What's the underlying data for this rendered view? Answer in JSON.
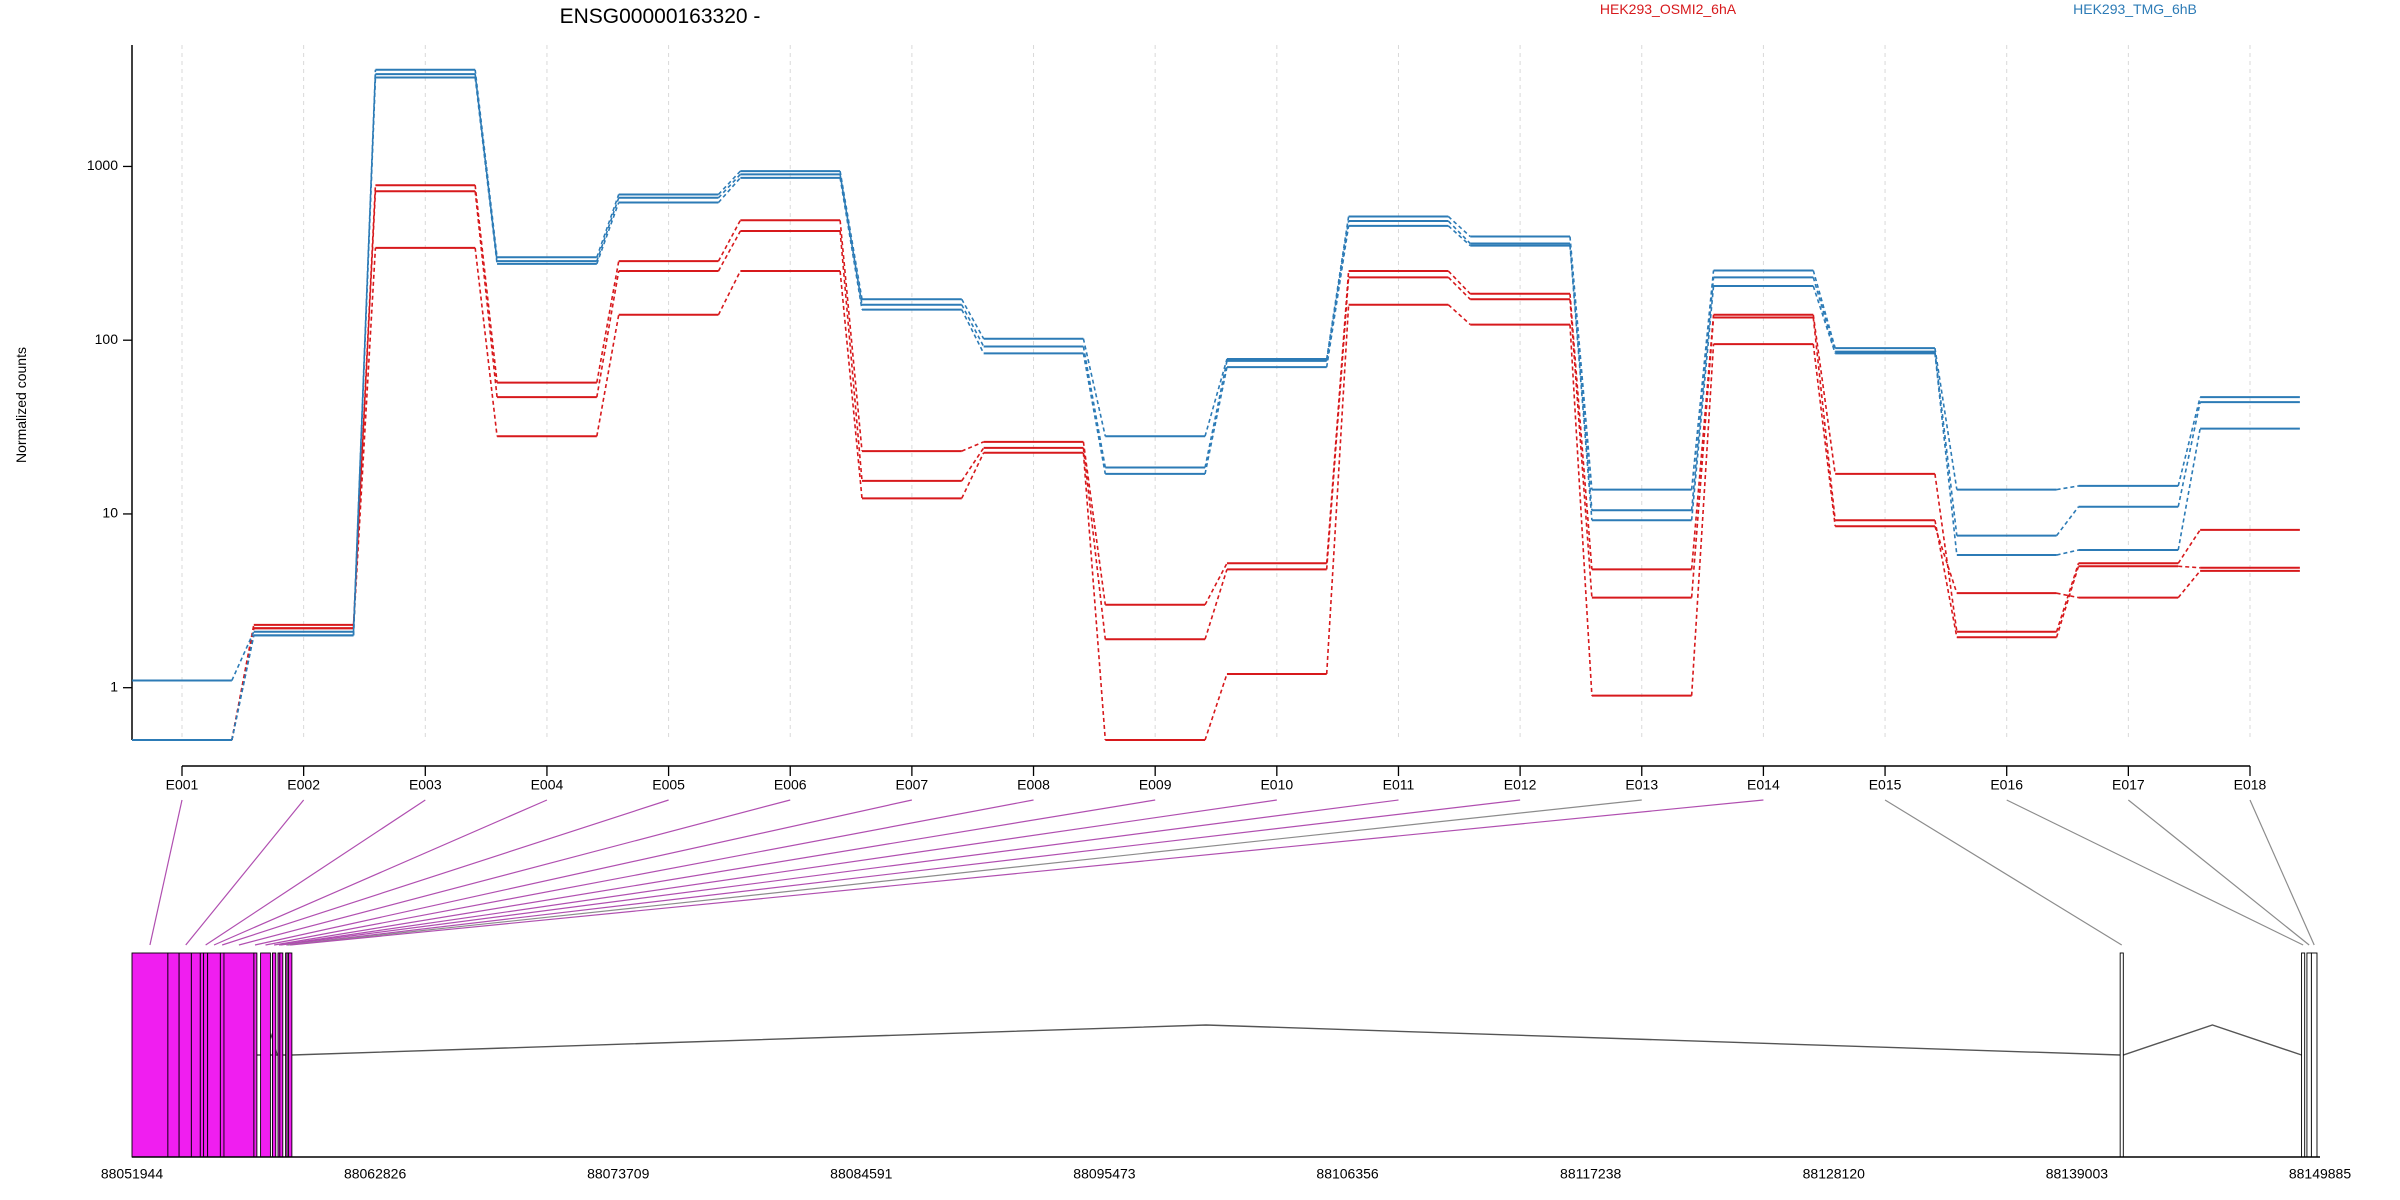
{
  "chart_data": {
    "type": "line",
    "title": "ENSG00000163320 -",
    "ylabel": "Normalized counts",
    "y_scale": "log",
    "ylim": [
      0.5,
      5000
    ],
    "y_ticks": [
      1,
      10,
      100,
      1000
    ],
    "y_tick_labels": [
      "1",
      "10",
      "100",
      "1000"
    ],
    "categories": [
      "E001",
      "E002",
      "E003",
      "E004",
      "E005",
      "E006",
      "E007",
      "E008",
      "E009",
      "E010",
      "E011",
      "E012",
      "E013",
      "E014",
      "E015",
      "E016",
      "E017",
      "E018"
    ],
    "legend": [
      {
        "name": "HEK293_OSMI2_6hA",
        "color": "#d7191c"
      },
      {
        "name": "HEK293_TMG_6hB",
        "color": "#2c7bb6"
      }
    ],
    "series": [
      {
        "group": "HEK293_OSMI2_6hA",
        "color": "#d7191c",
        "values": [
          0.5,
          2.3,
          780,
          57,
          285,
          490,
          23,
          26,
          3.0,
          5.2,
          250,
          185,
          4.8,
          140,
          17,
          2.1,
          5.2,
          8.1
        ]
      },
      {
        "group": "HEK293_OSMI2_6hA",
        "color": "#d7191c",
        "values": [
          0.5,
          2.2,
          720,
          47,
          250,
          425,
          15.5,
          24,
          1.9,
          4.8,
          230,
          172,
          3.3,
          135,
          9.2,
          1.95,
          5.0,
          4.9
        ]
      },
      {
        "group": "HEK293_OSMI2_6hA",
        "color": "#d7191c",
        "values": [
          0.5,
          2.2,
          340,
          28,
          140,
          250,
          12.3,
          22.5,
          0.5,
          1.2,
          160,
          123,
          0.9,
          95,
          8.5,
          3.5,
          3.3,
          4.7
        ]
      },
      {
        "group": "HEK293_TMG_6hB",
        "color": "#2c7bb6",
        "values": [
          1.1,
          2.1,
          3600,
          300,
          690,
          940,
          172,
          102,
          28,
          78,
          515,
          395,
          13.8,
          252,
          90,
          13.8,
          14.5,
          47
        ]
      },
      {
        "group": "HEK293_TMG_6hB",
        "color": "#2c7bb6",
        "values": [
          0.5,
          2.0,
          3400,
          285,
          660,
          900,
          160,
          92,
          18.5,
          76,
          485,
          360,
          10.5,
          230,
          86,
          7.5,
          11,
          44
        ]
      },
      {
        "group": "HEK293_TMG_6hB",
        "color": "#2c7bb6",
        "values": [
          0.5,
          2.0,
          3250,
          275,
          620,
          860,
          150,
          84,
          17,
          70,
          455,
          350,
          9.2,
          205,
          84,
          5.8,
          6.2,
          31
        ]
      }
    ],
    "genomic_axis": {
      "start": 88051944,
      "end": 88149885,
      "tick_labels": [
        "88051944",
        "88062826",
        "88073709",
        "88084591",
        "88095473",
        "88106356",
        "88117238",
        "88128120",
        "88139003",
        "88149885"
      ]
    },
    "exons": [
      {
        "id": "E001",
        "start": 88051944,
        "end": 88053550,
        "color": "#f01ef0"
      },
      {
        "id": "E002",
        "start": 88053550,
        "end": 88055150,
        "color": "#f01ef0"
      },
      {
        "id": "E003",
        "start": 88055150,
        "end": 88055330,
        "color": "#f01ef0"
      },
      {
        "id": "E004",
        "start": 88055330,
        "end": 88055900,
        "color": "#f01ef0"
      },
      {
        "id": "E005",
        "start": 88055900,
        "end": 88056060,
        "color": "#f01ef0"
      },
      {
        "id": "E006",
        "start": 88056060,
        "end": 88057400,
        "color": "#f01ef0"
      },
      {
        "id": "E007",
        "start": 88057400,
        "end": 88057500,
        "color": "#f01ef0"
      },
      {
        "id": "E008",
        "start": 88057700,
        "end": 88058140,
        "color": "#f01ef0"
      },
      {
        "id": "E009",
        "start": 88058230,
        "end": 88058380,
        "color": "#f01ef0"
      },
      {
        "id": "E010",
        "start": 88058480,
        "end": 88058560,
        "color": "#f01ef0"
      },
      {
        "id": "E011",
        "start": 88058560,
        "end": 88058630,
        "color": "#f01ef0"
      },
      {
        "id": "E012",
        "start": 88058820,
        "end": 88058890,
        "color": "#f01ef0"
      },
      {
        "id": "E013",
        "start": 88058890,
        "end": 88058950,
        "color": "#ffffff"
      },
      {
        "id": "E014",
        "start": 88058950,
        "end": 88059100,
        "color": "#f01ef0"
      },
      {
        "id": "E015",
        "start": 88140940,
        "end": 88141080,
        "color": "#ffffff"
      },
      {
        "id": "E016",
        "start": 88149060,
        "end": 88149200,
        "color": "#ffffff"
      },
      {
        "id": "E017",
        "start": 88149300,
        "end": 88149500,
        "color": "#ffffff"
      },
      {
        "id": "E018",
        "start": 88149500,
        "end": 88149750,
        "color": "#ffffff"
      }
    ]
  }
}
